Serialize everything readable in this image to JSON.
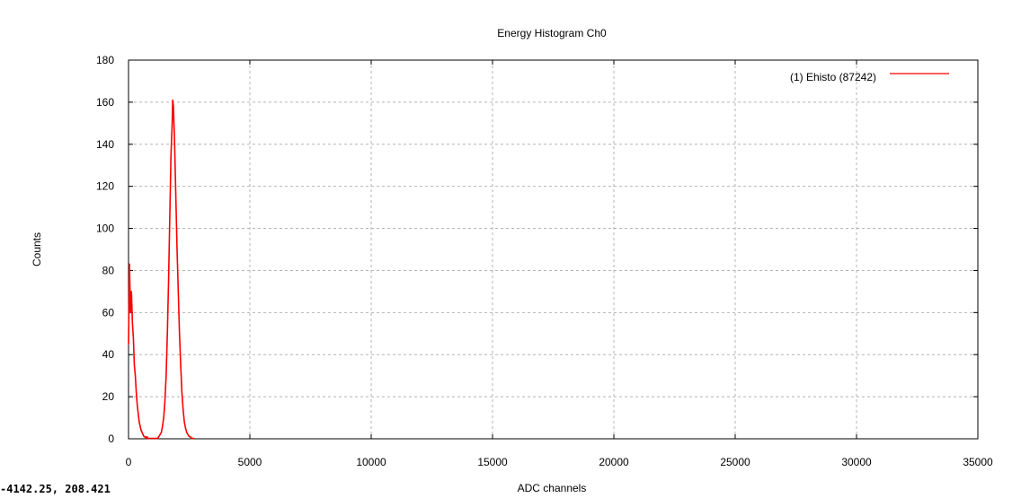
{
  "chart_data": {
    "type": "line",
    "title": "Energy Histogram Ch0",
    "xlabel": "ADC channels",
    "ylabel": "Counts",
    "xlim": [
      0,
      35000
    ],
    "ylim": [
      0,
      180
    ],
    "x_ticks": [
      0,
      5000,
      10000,
      15000,
      20000,
      25000,
      30000,
      35000
    ],
    "y_ticks": [
      0,
      20,
      40,
      60,
      80,
      100,
      120,
      140,
      160,
      180
    ],
    "grid": true,
    "legend_position": "top-right",
    "series": [
      {
        "name": "(1) Ehisto (87242)",
        "color": "#ff0000",
        "x": [
          0,
          40,
          80,
          120,
          160,
          200,
          240,
          280,
          320,
          360,
          400,
          440,
          480,
          520,
          560,
          600,
          640,
          680,
          720,
          760,
          800,
          900,
          1000,
          1100,
          1200,
          1250,
          1300,
          1350,
          1400,
          1450,
          1500,
          1550,
          1600,
          1650,
          1700,
          1750,
          1800,
          1820,
          1850,
          1900,
          1950,
          2000,
          2050,
          2100,
          2150,
          2200,
          2250,
          2300,
          2350,
          2400,
          2450,
          2500,
          2550,
          2600,
          2700
        ],
        "values": [
          45,
          83,
          60,
          70,
          55,
          48,
          35,
          30,
          22,
          16,
          12,
          8,
          6,
          4,
          3,
          2,
          1,
          1,
          0,
          1,
          0,
          0,
          0,
          0,
          0,
          1,
          2,
          3,
          6,
          10,
          18,
          30,
          50,
          75,
          105,
          135,
          150,
          161,
          158,
          140,
          115,
          90,
          70,
          50,
          35,
          22,
          14,
          8,
          5,
          3,
          2,
          1,
          1,
          0,
          0
        ]
      }
    ]
  },
  "status": {
    "coordinates": "-4142.25, 208.421"
  }
}
